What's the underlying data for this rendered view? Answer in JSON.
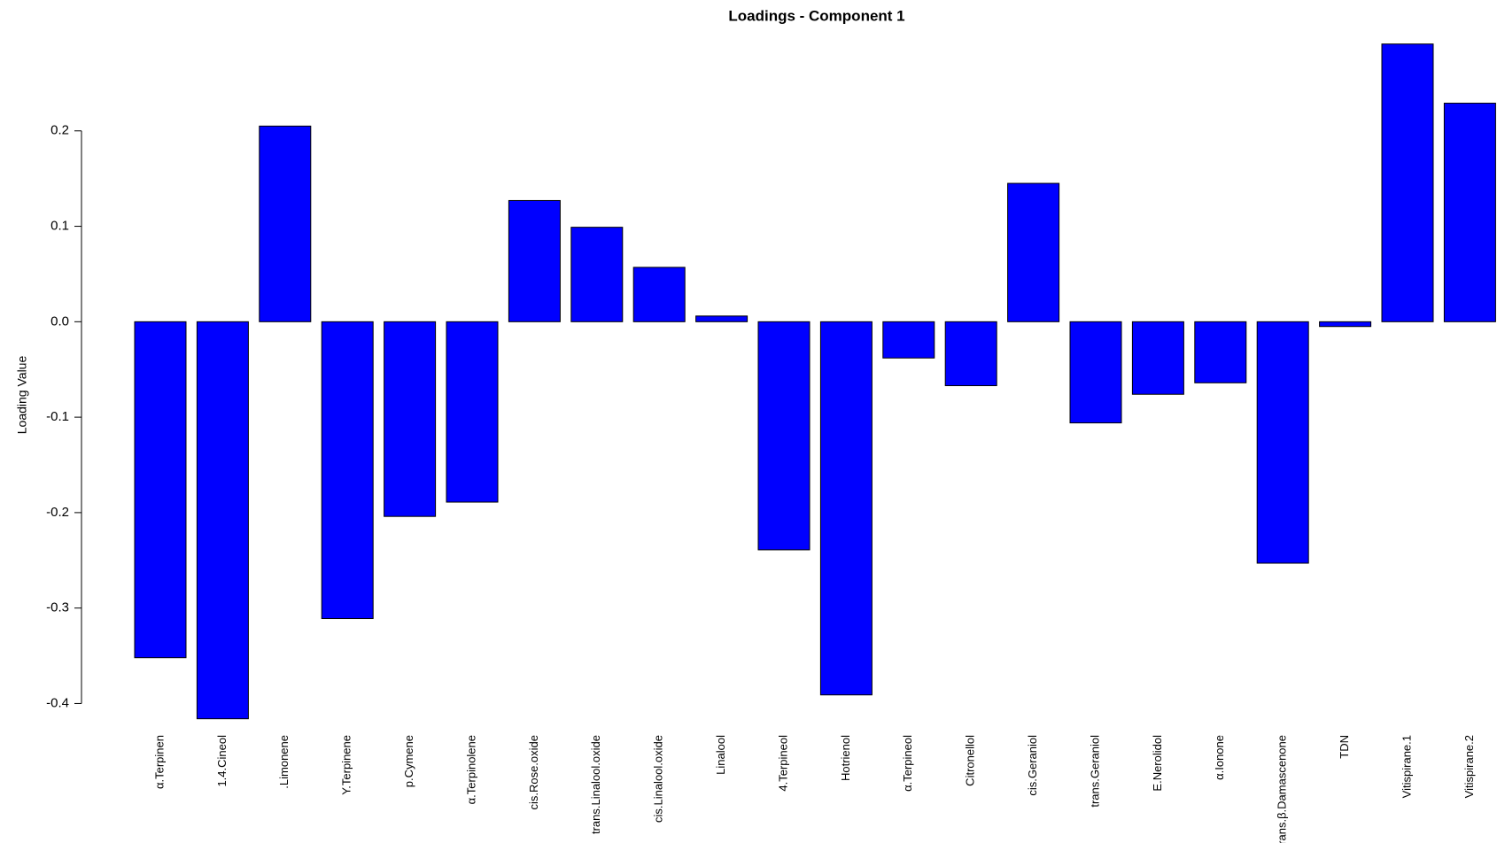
{
  "chart_data": {
    "type": "bar",
    "title": "Loadings - Component 1",
    "y_label": "Loading Value",
    "categories": [
      "α.Terpinen",
      "1.4.Cineol",
      ".Limonene",
      "Y.Terpinene",
      "p.Cymene",
      "α.Terpinolene",
      "cis.Rose.oxide",
      "trans.Linalool.oxide",
      "cis.Linalool.oxide",
      "Linalool",
      "4.Terpineol",
      "Hotrienol",
      "α.Terpineol",
      "Citronellol",
      "cis.Geraniol",
      "trans.Geraniol",
      "E.Nerolidol",
      "α.Ionone",
      "trans.β.Damascenone",
      "TDN",
      "Vitispirane.1",
      "Vitispirane.2"
    ],
    "values": [
      -0.352,
      -0.416,
      0.205,
      -0.311,
      -0.204,
      -0.189,
      0.127,
      0.099,
      0.057,
      0.006,
      -0.239,
      -0.391,
      -0.038,
      -0.067,
      0.145,
      -0.106,
      -0.076,
      -0.064,
      -0.253,
      -0.005,
      0.291,
      0.229
    ],
    "color": "#0000ff",
    "ylim": [
      -0.42,
      0.3
    ],
    "yticks": [
      -0.4,
      -0.3,
      -0.2,
      -0.1,
      {
        "value": 0,
        "label": "0.0"
      },
      0.1,
      0.2
    ],
    "grid": false
  }
}
